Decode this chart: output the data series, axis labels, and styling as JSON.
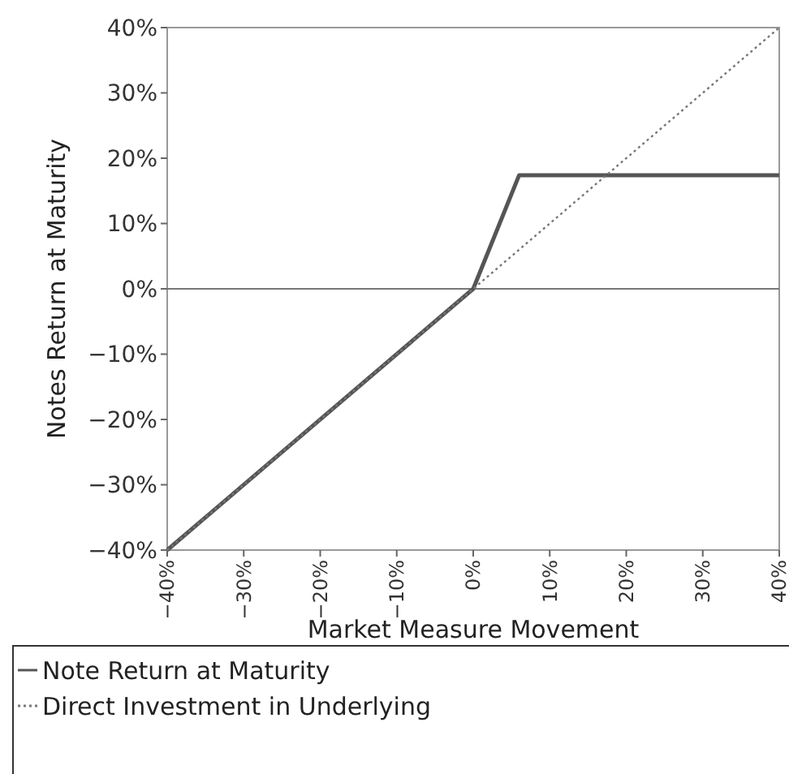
{
  "chart_data": {
    "type": "line",
    "xlabel": "Market Measure Movement",
    "ylabel": "Notes Return at Maturity",
    "xlim": [
      -40,
      40
    ],
    "ylim": [
      -40,
      40
    ],
    "xticks": [
      {
        "value": -40,
        "label": "−40%"
      },
      {
        "value": -30,
        "label": "−30%"
      },
      {
        "value": -20,
        "label": "−20%"
      },
      {
        "value": -10,
        "label": "−10%"
      },
      {
        "value": 0,
        "label": "0%"
      },
      {
        "value": 10,
        "label": "10%"
      },
      {
        "value": 20,
        "label": "20%"
      },
      {
        "value": 30,
        "label": "30%"
      },
      {
        "value": 40,
        "label": "40%"
      }
    ],
    "yticks": [
      {
        "value": -40,
        "label": "−40%"
      },
      {
        "value": -30,
        "label": "−30%"
      },
      {
        "value": -20,
        "label": "−20%"
      },
      {
        "value": -10,
        "label": "−10%"
      },
      {
        "value": 0,
        "label": "0%"
      },
      {
        "value": 10,
        "label": "10%"
      },
      {
        "value": 20,
        "label": "20%"
      },
      {
        "value": 30,
        "label": "30%"
      },
      {
        "value": 40,
        "label": "40%"
      }
    ],
    "series": [
      {
        "name": "Note Return at Maturity",
        "color": "#555555",
        "line_style": "solid",
        "x": [
          -40,
          0,
          6,
          40
        ],
        "values": [
          -40,
          0,
          17.4,
          17.4
        ]
      },
      {
        "name": "Direct Investment in Underlying",
        "color": "#777777",
        "line_style": "dotted",
        "x": [
          -40,
          40
        ],
        "values": [
          -40,
          40
        ]
      }
    ],
    "ref_lines": [
      {
        "axis": "y",
        "value": 0,
        "color": "#777777"
      }
    ],
    "grid": false,
    "legend": "bottom"
  }
}
